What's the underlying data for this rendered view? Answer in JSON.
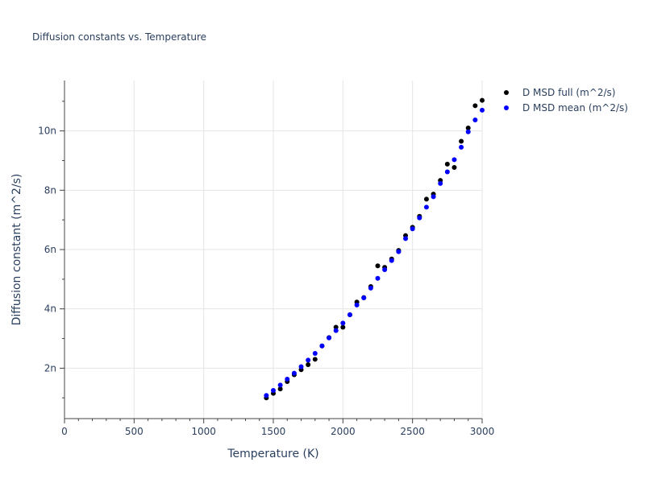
{
  "chart_data": {
    "type": "scatter",
    "title": "Diffusion constants vs. Temperature",
    "xlabel": "Temperature (K)",
    "ylabel": "Diffusion constant (m^2/s)",
    "xlim": [
      0,
      3000
    ],
    "ylim": [
      3e-10,
      1.17e-08
    ],
    "x_ticks": [
      0,
      500,
      1000,
      1500,
      2000,
      2500,
      3000
    ],
    "y_ticks": [
      2e-09,
      4e-09,
      6e-09,
      8e-09,
      1e-08
    ],
    "x_tick_labels": [
      "0",
      "500",
      "1000",
      "1500",
      "2000",
      "2500",
      "3000"
    ],
    "y_tick_labels": [
      "2n",
      "4n",
      "6n",
      "8n",
      "10n"
    ],
    "grid": true,
    "legend_position": "top-right (outside plot)",
    "series": [
      {
        "name": "D MSD full (m^2/s)",
        "color": "#000000",
        "x": [
          1450,
          1500,
          1550,
          1600,
          1650,
          1700,
          1750,
          1800,
          1850,
          1900,
          1950,
          2000,
          2050,
          2100,
          2150,
          2200,
          2250,
          2300,
          2350,
          2400,
          2450,
          2500,
          2550,
          2600,
          2650,
          2700,
          2750,
          2800,
          2850,
          2900,
          2950,
          3000
        ],
        "y": [
          1e-09,
          1.15e-09,
          1.3e-09,
          1.55e-09,
          1.78e-09,
          1.95e-09,
          2.12e-09,
          2.3e-09,
          2.75e-09,
          3.03e-09,
          3.38e-09,
          3.38e-09,
          3.8e-09,
          4.23e-09,
          4.38e-09,
          4.75e-09,
          5.45e-09,
          5.4e-09,
          5.68e-09,
          5.97e-09,
          6.47e-09,
          6.75e-09,
          7.12e-09,
          7.7e-09,
          7.87e-09,
          8.33e-09,
          8.88e-09,
          8.77e-09,
          9.65e-09,
          1.01e-08,
          1.085e-08,
          1.103e-08
        ]
      },
      {
        "name": "D MSD mean (m^2/s)",
        "color": "#0000ff",
        "x": [
          1450,
          1500,
          1550,
          1600,
          1650,
          1700,
          1750,
          1800,
          1850,
          1900,
          1950,
          2000,
          2050,
          2100,
          2150,
          2200,
          2250,
          2300,
          2350,
          2400,
          2450,
          2500,
          2550,
          2600,
          2650,
          2700,
          2750,
          2800,
          2850,
          2900,
          2950,
          3000
        ],
        "y": [
          1.08e-09,
          1.25e-09,
          1.43e-09,
          1.63e-09,
          1.83e-09,
          2.05e-09,
          2.27e-09,
          2.5e-09,
          2.75e-09,
          3.02e-09,
          3.27e-09,
          3.52e-09,
          3.8e-09,
          4.13e-09,
          4.37e-09,
          4.7e-09,
          5.03e-09,
          5.32e-09,
          5.63e-09,
          5.93e-09,
          6.37e-09,
          6.7e-09,
          7.07e-09,
          7.43e-09,
          7.78e-09,
          8.23e-09,
          8.62e-09,
          9.03e-09,
          9.45e-09,
          9.97e-09,
          1.037e-08,
          1.07e-08
        ]
      }
    ]
  }
}
